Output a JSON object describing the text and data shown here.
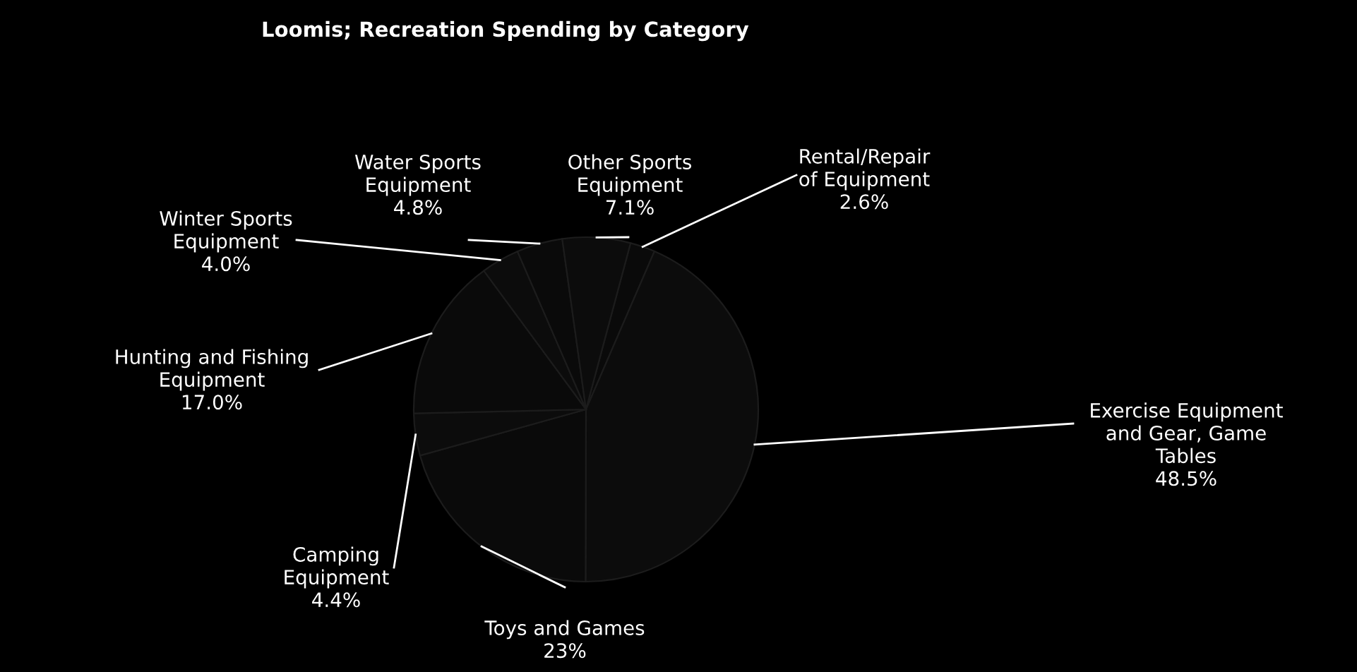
{
  "chart_data": {
    "type": "pie",
    "title": "Loomis; Recreation Spending by Category",
    "categories": [
      "Rental/Repair\nof Equipment",
      "Exercise Equipment\nand Gear, Game\nTables",
      "Toys and Games",
      "Camping\nEquipment",
      "Hunting and Fishing\nEquipment",
      "Winter Sports\nEquipment",
      "Water Sports\nEquipment",
      "Other Sports\nEquipment"
    ],
    "values": [
      2.6,
      48.5,
      23,
      4.4,
      17.0,
      4.0,
      4.8,
      7.1
    ],
    "value_labels": [
      "2.6%",
      "48.5%",
      "23%",
      "4.4%",
      "17.0%",
      "4.0%",
      "4.8%",
      "7.1%"
    ],
    "colors": [
      "#0a0a0a",
      "#0c0c0c",
      "#0a0a0a",
      "#0c0c0c",
      "#0a0a0a",
      "#0c0c0c",
      "#0a0a0a",
      "#0c0c0c"
    ]
  }
}
